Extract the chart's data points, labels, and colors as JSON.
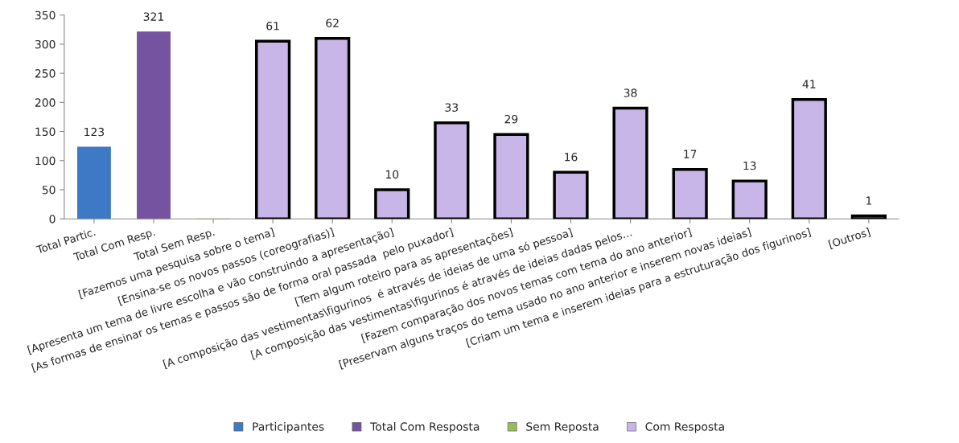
{
  "chart_data": {
    "type": "bar",
    "categories": [
      "Total Partic.",
      "Total Com Resp.",
      "Total Sem Resp.",
      "[Fazemos uma pesquisa sobre o tema]",
      "[Ensina-se os novos passos (coreografias)]",
      "[Apresenta um tema de livre escolha e vão construindo a apresentação]",
      "[As formas de ensinar os temas e passos são de forma oral passada  pelo puxador]",
      "[Tem algum roteiro para as apresentações]",
      "[A composição das vestimentas\\figurinos  é através de ideias de uma só pessoa]",
      "[A composição das vestimentas\\figurinos é através de ideias dadas pelos…",
      "[Fazem comparação dos novos temas com tema do ano anterior]",
      "[Preservam alguns traços do tema usado no ano anterior e inserem novas ideias]",
      "[Criam um tema e inserem ideias para a estruturação dos figurinos]",
      "[Outros]"
    ],
    "series": [
      {
        "name": "Participantes",
        "color": "#3d79c4",
        "values": [
          123,
          null,
          null,
          null,
          null,
          null,
          null,
          null,
          null,
          null,
          null,
          null,
          null,
          null
        ],
        "value_labels": [
          "123",
          null,
          null,
          null,
          null,
          null,
          null,
          null,
          null,
          null,
          null,
          null,
          null,
          null
        ]
      },
      {
        "name": "Total Com Resposta",
        "color": "#7553a0",
        "values": [
          null,
          321,
          null,
          null,
          null,
          null,
          null,
          null,
          null,
          null,
          null,
          null,
          null,
          null
        ],
        "value_labels": [
          null,
          "321",
          null,
          null,
          null,
          null,
          null,
          null,
          null,
          null,
          null,
          null,
          null,
          null
        ]
      },
      {
        "name": "Sem Reposta",
        "color": "#9bbb59",
        "values": [
          null,
          null,
          0,
          null,
          null,
          null,
          null,
          null,
          null,
          null,
          null,
          null,
          null,
          null
        ],
        "value_labels": [
          null,
          null,
          null,
          null,
          null,
          null,
          null,
          null,
          null,
          null,
          null,
          null,
          null,
          null
        ]
      },
      {
        "name": "Com Resposta",
        "color": "#c9b6e8",
        "axis": "y2",
        "values": [
          null,
          null,
          null,
          61,
          62,
          10,
          33,
          29,
          16,
          38,
          17,
          13,
          41,
          1
        ]
      }
    ],
    "y2lim": [
      0,
      70
    ],
    "data_labels": true,
    "ylim": [
      0,
      350
    ],
    "yticks": [
      0,
      50,
      100,
      150,
      200,
      250,
      300,
      350
    ],
    "grid": false,
    "legend": "bottom"
  }
}
